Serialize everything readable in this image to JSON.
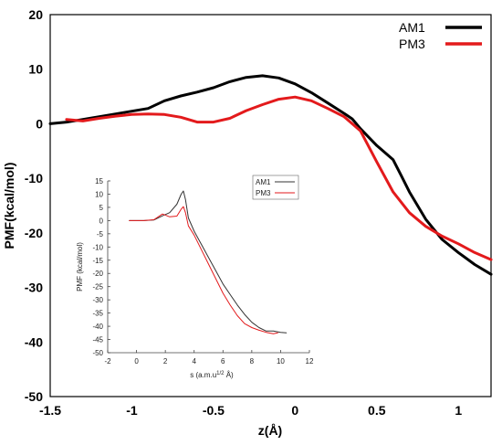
{
  "chart_data": [
    {
      "type": "line",
      "xlabel": "z(Å)",
      "ylabel": "PMF(kcal/mol)",
      "xlim": [
        -1.5,
        1.2
      ],
      "ylim": [
        -50,
        20
      ],
      "x_ticks": [
        "-1.5",
        "-1",
        "-0.5",
        "0",
        "0.5",
        "1"
      ],
      "y_ticks": [
        "20",
        "10",
        "0",
        "-10",
        "-20",
        "-30",
        "-40",
        "-50"
      ],
      "legend_position": "top-right",
      "grid": false,
      "series": [
        {
          "name": "AM1",
          "color": "#000000",
          "points": [
            [
              -1.5,
              0
            ],
            [
              -1.4,
              0.3
            ],
            [
              -1.3,
              0.8
            ],
            [
              -1.2,
              1.3
            ],
            [
              -1.1,
              1.8
            ],
            [
              -1.0,
              2.3
            ],
            [
              -0.9,
              2.8
            ],
            [
              -0.8,
              4.2
            ],
            [
              -0.7,
              5.1
            ],
            [
              -0.6,
              5.8
            ],
            [
              -0.5,
              6.6
            ],
            [
              -0.4,
              7.7
            ],
            [
              -0.3,
              8.5
            ],
            [
              -0.2,
              8.8
            ],
            [
              -0.1,
              8.4
            ],
            [
              0.0,
              7.3
            ],
            [
              0.1,
              5.7
            ],
            [
              0.2,
              3.8
            ],
            [
              0.3,
              1.9
            ],
            [
              0.35,
              0.9
            ],
            [
              0.4,
              -0.9
            ],
            [
              0.5,
              -4.0
            ],
            [
              0.6,
              -6.6
            ],
            [
              0.65,
              -9.5
            ],
            [
              0.7,
              -12.5
            ],
            [
              0.8,
              -17.5
            ],
            [
              0.9,
              -21.2
            ],
            [
              1.0,
              -23.6
            ],
            [
              1.1,
              -25.8
            ],
            [
              1.2,
              -27.6
            ]
          ]
        },
        {
          "name": "PM3",
          "color": "#e31a1c",
          "points": [
            [
              -1.4,
              0.8
            ],
            [
              -1.3,
              0.5
            ],
            [
              -1.2,
              1.0
            ],
            [
              -1.1,
              1.4
            ],
            [
              -1.0,
              1.7
            ],
            [
              -0.9,
              1.8
            ],
            [
              -0.8,
              1.7
            ],
            [
              -0.7,
              1.2
            ],
            [
              -0.6,
              0.3
            ],
            [
              -0.5,
              0.3
            ],
            [
              -0.4,
              1.0
            ],
            [
              -0.3,
              2.4
            ],
            [
              -0.2,
              3.5
            ],
            [
              -0.1,
              4.5
            ],
            [
              0.0,
              4.9
            ],
            [
              0.1,
              4.2
            ],
            [
              0.2,
              2.8
            ],
            [
              0.3,
              1.3
            ],
            [
              0.4,
              -1.3
            ],
            [
              0.5,
              -7.0
            ],
            [
              0.6,
              -12.5
            ],
            [
              0.7,
              -16.3
            ],
            [
              0.8,
              -18.8
            ],
            [
              0.9,
              -20.6
            ],
            [
              1.0,
              -22.0
            ],
            [
              1.1,
              -23.6
            ],
            [
              1.2,
              -24.9
            ]
          ]
        }
      ]
    },
    {
      "type": "line",
      "xlabel": "s (a.m.u",
      "xlabel_sup": "1/2",
      "xlabel_end": " Å)",
      "ylabel": "PMF (kcal/mol)",
      "xlim": [
        -2,
        12
      ],
      "ylim": [
        -50,
        15
      ],
      "x_ticks": [
        "-2",
        "0",
        "2",
        "4",
        "6",
        "8",
        "10",
        "12"
      ],
      "y_ticks": [
        "15",
        "10",
        "5",
        "0",
        "-5",
        "-10",
        "-15",
        "-20",
        "-25",
        "-30",
        "-35",
        "-40",
        "-45",
        "-50"
      ],
      "legend_position": "top-right",
      "grid": false,
      "series": [
        {
          "name": "AM1",
          "color": "#333333",
          "points": [
            [
              -0.5,
              0
            ],
            [
              0.5,
              0
            ],
            [
              1.2,
              0.2
            ],
            [
              1.8,
              1.8
            ],
            [
              2.3,
              3.0
            ],
            [
              2.8,
              6.2
            ],
            [
              3.1,
              10.0
            ],
            [
              3.25,
              11.2
            ],
            [
              3.4,
              8.0
            ],
            [
              3.6,
              1.0
            ],
            [
              4.0,
              -4.0
            ],
            [
              4.5,
              -9.0
            ],
            [
              5.0,
              -14.0
            ],
            [
              5.5,
              -19.0
            ],
            [
              6.0,
              -24.0
            ],
            [
              6.5,
              -28.0
            ],
            [
              7.0,
              -32.0
            ],
            [
              7.5,
              -35.5
            ],
            [
              8.0,
              -38.5
            ],
            [
              8.5,
              -40.5
            ],
            [
              9.0,
              -41.8
            ],
            [
              9.5,
              -41.8
            ],
            [
              10.0,
              -42.3
            ],
            [
              10.4,
              -42.5
            ]
          ]
        },
        {
          "name": "PM3",
          "color": "#e31a1c",
          "points": [
            [
              -0.5,
              0
            ],
            [
              0.5,
              0
            ],
            [
              1.2,
              0.3
            ],
            [
              1.8,
              2.5
            ],
            [
              2.3,
              1.4
            ],
            [
              2.8,
              1.7
            ],
            [
              3.1,
              4.3
            ],
            [
              3.25,
              5.3
            ],
            [
              3.4,
              3.0
            ],
            [
              3.6,
              -2.0
            ],
            [
              4.0,
              -5.5
            ],
            [
              4.5,
              -11.0
            ],
            [
              5.0,
              -16.5
            ],
            [
              5.5,
              -22.0
            ],
            [
              6.0,
              -27.5
            ],
            [
              6.5,
              -32.0
            ],
            [
              7.0,
              -36.0
            ],
            [
              7.5,
              -39.0
            ],
            [
              8.0,
              -40.5
            ],
            [
              8.5,
              -41.5
            ],
            [
              9.0,
              -42.3
            ],
            [
              9.5,
              -42.8
            ],
            [
              9.8,
              -42.5
            ]
          ]
        }
      ]
    }
  ]
}
